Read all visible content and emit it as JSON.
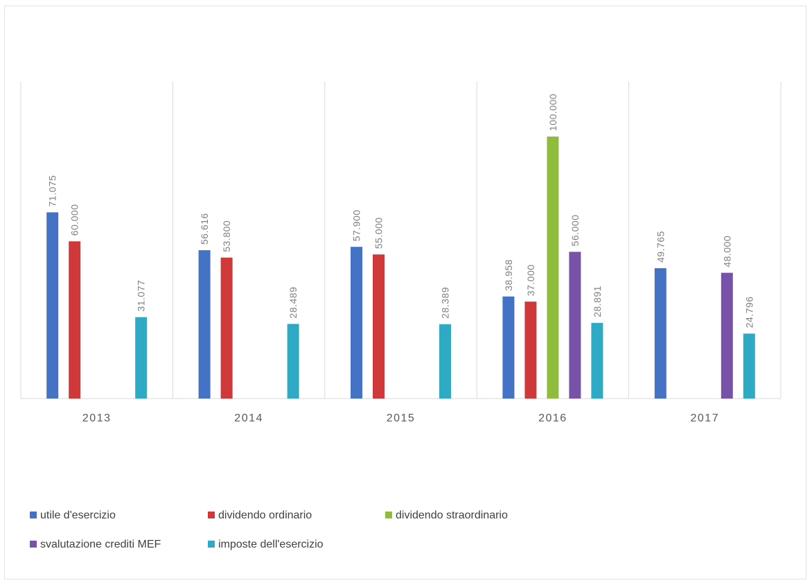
{
  "chart_data": {
    "type": "bar",
    "categories": [
      "2013",
      "2014",
      "2015",
      "2016",
      "2017"
    ],
    "series": [
      {
        "name": "utile d'esercizio",
        "color": "#4472c4",
        "values": [
          71075,
          56616,
          57900,
          38958,
          49765
        ],
        "labels": [
          "71.075",
          "56.616",
          "57.900",
          "38.958",
          "49.765"
        ]
      },
      {
        "name": "dividendo ordinario",
        "color": "#d0393a",
        "values": [
          60000,
          53800,
          55000,
          37000,
          null
        ],
        "labels": [
          "60.000",
          "53.800",
          "55.000",
          "37.000",
          null
        ]
      },
      {
        "name": "dividendo straordinario",
        "color": "#8fbc3d",
        "values": [
          null,
          null,
          null,
          100000,
          null
        ],
        "labels": [
          null,
          null,
          null,
          "100.000",
          null
        ]
      },
      {
        "name": "svalutazione crediti MEF",
        "color": "#7851a9",
        "values": [
          null,
          null,
          null,
          56000,
          48000
        ],
        "labels": [
          null,
          null,
          null,
          "56.000",
          "48.000"
        ]
      },
      {
        "name": "imposte dell'esercizio",
        "color": "#2eaac5",
        "values": [
          31077,
          28489,
          28389,
          28891,
          24796
        ],
        "labels": [
          "31.077",
          "28.489",
          "28.389",
          "28.891",
          "24.796"
        ]
      }
    ],
    "ylim": [
      0,
      120000
    ],
    "grid": "vertical category separators",
    "legend_position": "bottom"
  }
}
